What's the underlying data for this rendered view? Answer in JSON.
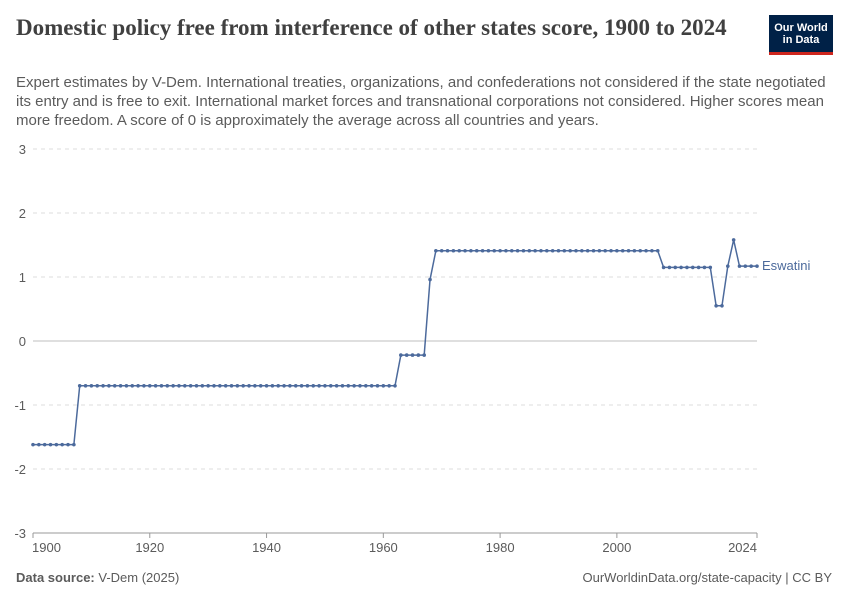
{
  "header": {
    "title": "Domestic policy free from interference of other states score, 1900 to 2024",
    "subtitle": "Expert estimates by V-Dem. International treaties, organizations, and confederations not considered if the state negotiated its entry and is free to exit. International market forces and transnational corporations not considered. Higher scores mean more freedom. A score of 0 is approximately the average across all countries and years."
  },
  "logo": {
    "line1": "Our World",
    "line2": "in Data"
  },
  "footer": {
    "source_label": "Data source:",
    "source_value": "V-Dem (2025)",
    "url": "OurWorldinData.org/state-capacity | CC BY"
  },
  "colors": {
    "series": "#4c6a9c",
    "text": "#5b5b5b",
    "grid": "#dddddd",
    "zero": "#bfbfbf"
  },
  "chart_data": {
    "type": "line",
    "title": "Domestic policy free from interference of other states score, 1900 to 2024",
    "xlim": [
      1900,
      2024
    ],
    "ylim": [
      -3,
      3
    ],
    "x_ticks": [
      1900,
      1920,
      1940,
      1960,
      1980,
      2000,
      2024
    ],
    "y_ticks": [
      3,
      2,
      1,
      0,
      -1,
      -2,
      -3
    ],
    "grid": true,
    "series": [
      {
        "name": "Eswatini",
        "segments": [
          {
            "from": 1900,
            "to": 1907,
            "value": -1.62
          },
          {
            "from": 1908,
            "to": 1962,
            "value": -0.7
          },
          {
            "from": 1963,
            "to": 1967,
            "value": -0.22
          },
          {
            "from": 1968,
            "to": 1968,
            "value": 0.96
          },
          {
            "from": 1969,
            "to": 2007,
            "value": 1.41
          },
          {
            "from": 2008,
            "to": 2016,
            "value": 1.15
          },
          {
            "from": 2017,
            "to": 2018,
            "value": 0.55
          },
          {
            "from": 2019,
            "to": 2019,
            "value": 1.17
          },
          {
            "from": 2020,
            "to": 2020,
            "value": 1.58
          },
          {
            "from": 2021,
            "to": 2024,
            "value": 1.17
          }
        ]
      }
    ]
  }
}
